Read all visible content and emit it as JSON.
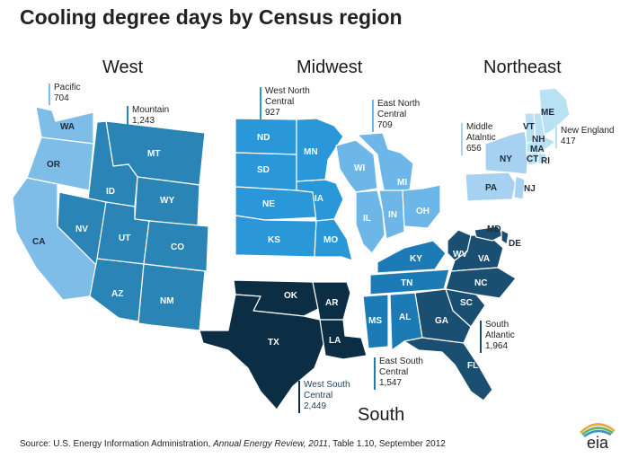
{
  "title": "Cooling degree days by Census region",
  "regions": {
    "west": "West",
    "midwest": "Midwest",
    "northeast": "Northeast",
    "south": "South"
  },
  "divisions": [
    {
      "key": "pacific",
      "name": "Pacific",
      "value": "704",
      "color": "#7fbde9"
    },
    {
      "key": "mountain",
      "name": "Mountain",
      "value": "1,243",
      "color": "#2a84b6"
    },
    {
      "key": "wnc",
      "name": "West North Central",
      "value": "927",
      "color": "#2a97d8"
    },
    {
      "key": "enc",
      "name": "East North Central",
      "value": "709",
      "color": "#6cb6e8"
    },
    {
      "key": "matl",
      "name": "Middle Atalntic",
      "value": "656",
      "color": "#a6d1f0"
    },
    {
      "key": "ne",
      "name": "New England",
      "value": "417",
      "color": "#b8e2f4"
    },
    {
      "key": "wsc",
      "name": "West South Central",
      "value": "2,449",
      "color": "#0b2e45"
    },
    {
      "key": "esc",
      "name": "East South Central",
      "value": "1,547",
      "color": "#1c7ab5"
    },
    {
      "key": "satl",
      "name": "South Atlantic",
      "value": "1,964",
      "color": "#1b4f72"
    }
  ],
  "states": [
    "WA",
    "OR",
    "CA",
    "MT",
    "ID",
    "WY",
    "NV",
    "UT",
    "CO",
    "AZ",
    "NM",
    "ND",
    "SD",
    "NE",
    "KS",
    "MN",
    "IA",
    "MO",
    "WI",
    "MI",
    "IL",
    "IN",
    "OH",
    "NY",
    "PA",
    "NJ",
    "VT",
    "NH",
    "ME",
    "MA",
    "CT",
    "RI",
    "TX",
    "OK",
    "AR",
    "LA",
    "KY",
    "TN",
    "MS",
    "AL",
    "WV",
    "VA",
    "MD",
    "DE",
    "NC",
    "SC",
    "GA",
    "FL"
  ],
  "source": {
    "prefix": "Source: U.S. Energy Information Administration, ",
    "publication": "Annual Energy Review, 2011",
    "suffix": ", Table 1.10, September 2012"
  },
  "logo": "eia"
}
